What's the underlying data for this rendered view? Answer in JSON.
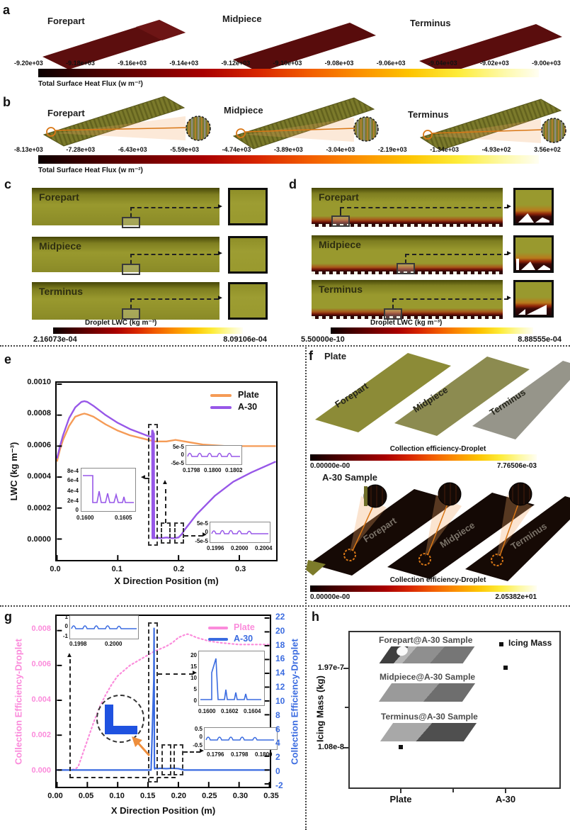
{
  "panel_a": {
    "tag": "a",
    "strips": [
      "Forepart",
      "Midpiece",
      "Terminus"
    ],
    "colorbar": {
      "ticks": [
        "-9.20e+03",
        "-9.18e+03",
        "-9.16e+03",
        "-9.14e+03",
        "-9.12e+03",
        "-9.10e+03",
        "-9.08e+03",
        "-9.06e+03",
        "-9.04e+03",
        "-9.02e+03",
        "-9.00e+03"
      ],
      "label": "Total Surface Heat Flux (w m⁻²)"
    }
  },
  "panel_b": {
    "tag": "b",
    "strips": [
      "Forepart",
      "Midpiece",
      "Terminus"
    ],
    "colorbar": {
      "ticks": [
        "-8.13e+03",
        "-7.28e+03",
        "-6.43e+03",
        "-5.59e+03",
        "-4.74e+03",
        "-3.89e+03",
        "-3.04e+03",
        "-2.19e+03",
        "-1.34e+03",
        "-4.93e+02",
        "3.56e+02"
      ],
      "label": "Total Surface Heat Flux (w m⁻²)"
    }
  },
  "panel_c": {
    "tag": "c",
    "strips": [
      "Forepart",
      "Midpiece",
      "Terminus"
    ],
    "colorbar": {
      "label": "Droplet LWC (kg m⁻³)",
      "min": "2.16073e-04",
      "max": "8.09106e-04"
    }
  },
  "panel_d": {
    "tag": "d",
    "strips": [
      "Forepart",
      "Midpiece",
      "Terminus"
    ],
    "colorbar": {
      "label": "Droplet LWC (kg m⁻³)",
      "min": "5.50000e-10",
      "max": "8.88555e-04"
    }
  },
  "panel_e": {
    "tag": "e"
  },
  "panel_f": {
    "tag": "f",
    "plate_title": "Plate",
    "a30_title": "A-30 Sample",
    "plate_strips": [
      "Forepart",
      "Midpiece",
      "Terminus"
    ],
    "a30_strips": [
      "Forepart",
      "Midpiece",
      "Terminus"
    ],
    "plate_colorbar": {
      "label": "Collection efficiency-Droplet",
      "min": "0.00000e-00",
      "max": "7.76506e-03"
    },
    "a30_colorbar": {
      "label": "Collection efficiency-Droplet",
      "min": "0.00000e-00",
      "max": "2.05382e+01"
    }
  },
  "panel_g": {
    "tag": "g"
  },
  "panel_h": {
    "tag": "h",
    "ylabel": "Icing Mass (kg)",
    "ytick_labels": [
      "1.97e-7",
      "1.08e-8"
    ],
    "xtick_labels": [
      "Plate",
      "A-30"
    ],
    "legend": "Icing Mass",
    "annotations": [
      "Forepart@A-30 Sample",
      "Midpiece@A-30 Sample",
      "Terminus@A-30 Sample"
    ]
  },
  "chart_data": [
    {
      "id": "chart-e",
      "type": "line",
      "xlabel": "X Direction Position (m)",
      "ylabel": "LWC (kg m⁻³)",
      "xlim": [
        0,
        0.36
      ],
      "ylim": [
        0,
        0.001
      ],
      "xticks": [
        0,
        0.1,
        0.2,
        0.3
      ],
      "xtick_labels": [
        "0.0",
        "0.1",
        "0.2",
        "0.3"
      ],
      "yticks": [
        0,
        0.0002,
        0.0004,
        0.0006,
        0.0008,
        0.001
      ],
      "ytick_labels": [
        "0.0000",
        "0.0002",
        "0.0004",
        "0.0006",
        "0.0008",
        "0.0010"
      ],
      "legend": [
        {
          "label": "Plate",
          "color": "#F59B56"
        },
        {
          "label": "A-30",
          "color": "#9757E8"
        }
      ],
      "series": [
        {
          "name": "Plate",
          "color": "#F59B56",
          "x": [
            0,
            0.005,
            0.01,
            0.02,
            0.03,
            0.04,
            0.045,
            0.05,
            0.06,
            0.08,
            0.1,
            0.12,
            0.14,
            0.16,
            0.18,
            0.195,
            0.21,
            0.24,
            0.28,
            0.32,
            0.36
          ],
          "y": [
            0.0005,
            0.00058,
            0.00064,
            0.00073,
            0.00079,
            0.000805,
            0.00081,
            0.000805,
            0.00079,
            0.00074,
            0.0007,
            0.00067,
            0.00065,
            0.00063,
            0.00063,
            0.00064,
            0.00063,
            0.00061,
            0.0006,
            0.0006,
            0.0006
          ]
        },
        {
          "name": "A-30",
          "color": "#9757E8",
          "x": [
            0,
            0.005,
            0.01,
            0.02,
            0.03,
            0.04,
            0.045,
            0.05,
            0.06,
            0.08,
            0.1,
            0.12,
            0.14,
            0.15,
            0.156,
            0.1565,
            0.157,
            0.1575,
            0.158,
            0.1585,
            0.159,
            0.1595,
            0.16,
            0.165,
            0.17,
            0.18,
            0.19,
            0.2,
            0.205,
            0.21,
            0.23,
            0.26,
            0.29,
            0.32,
            0.36
          ],
          "y": [
            0.00052,
            0.0006,
            0.00067,
            0.00078,
            0.00085,
            0.000885,
            0.00089,
            0.000885,
            0.00086,
            0.0008,
            0.00075,
            0.00071,
            0.00068,
            0.000665,
            0.00066,
            0.0007,
            5e-06,
            0.0007,
            5e-06,
            0.00069,
            5e-06,
            0.00068,
            5e-06,
            1e-05,
            5e-06,
            1e-05,
            5e-06,
            1e-05,
            3e-05,
            6e-05,
            0.00016,
            0.00028,
            0.00037,
            0.00043,
            0.0005
          ]
        }
      ],
      "insets": [
        {
          "yticks": [
            "8e-4",
            "6e-4",
            "4e-4",
            "2e-4",
            "0"
          ],
          "xticks": [
            "0.1600",
            "0.1605"
          ]
        },
        {
          "yticks": [
            "5e-5",
            "0",
            "-5e-5"
          ],
          "xticks": [
            "0.1798",
            "0.1800",
            "0.1802"
          ]
        },
        {
          "yticks": [
            "5e-5",
            "0",
            "-5e-5"
          ],
          "xticks": [
            "0.1996",
            "0.2000",
            "0.2004"
          ]
        }
      ]
    },
    {
      "id": "chart-g",
      "type": "line",
      "xlabel": "X Direction Position (m)",
      "ylabel_left": "Collection Efficiency-Droplet",
      "ylabel_right": "Collection Efficiency-Droplet",
      "xlim": [
        0,
        0.35
      ],
      "ylim_left": [
        -0.001,
        0.0088
      ],
      "ylim_right": [
        -2.4,
        22.3
      ],
      "xticks": [
        0,
        0.05,
        0.1,
        0.15,
        0.2,
        0.25,
        0.3,
        0.35
      ],
      "xtick_labels": [
        "0.00",
        "0.05",
        "0.10",
        "0.15",
        "0.20",
        "0.25",
        "0.30",
        "0.35"
      ],
      "yticks_left": [
        0,
        0.002,
        0.004,
        0.006,
        0.008
      ],
      "ytick_labels_left": [
        "0.000",
        "0.002",
        "0.004",
        "0.006",
        "0.008"
      ],
      "yticks_right": [
        -2,
        0,
        2,
        4,
        6,
        8,
        10,
        12,
        14,
        16,
        18,
        20,
        22
      ],
      "ytick_labels_right": [
        "-2",
        "0",
        "2",
        "4",
        "6",
        "8",
        "10",
        "12",
        "14",
        "16",
        "18",
        "20",
        "22"
      ],
      "legend": [
        {
          "label": "Plate",
          "color": "#FB8BDB"
        },
        {
          "label": "A-30",
          "color": "#3A6BE0"
        }
      ],
      "series": [
        {
          "name": "Plate",
          "axis": "left",
          "dashed": true,
          "color": "#FB8BDB",
          "x": [
            0,
            0.02,
            0.03,
            0.035,
            0.04,
            0.05,
            0.06,
            0.07,
            0.08,
            0.09,
            0.1,
            0.11,
            0.12,
            0.13,
            0.14,
            0.15,
            0.16,
            0.17,
            0.18,
            0.19,
            0.2,
            0.21,
            0.215,
            0.22,
            0.23,
            0.25,
            0.27,
            0.3,
            0.33,
            0.35
          ],
          "y": [
            0,
            0,
            5e-05,
            0.0002,
            0.0007,
            0.0017,
            0.0027,
            0.0036,
            0.0043,
            0.0049,
            0.0054,
            0.0057,
            0.006,
            0.0062,
            0.0064,
            0.0066,
            0.0068,
            0.00695,
            0.0071,
            0.0073,
            0.0076,
            0.00775,
            0.0078,
            0.00775,
            0.0076,
            0.0074,
            0.0073,
            0.0072,
            0.0072,
            0.0072
          ]
        },
        {
          "name": "A-30",
          "axis": "right",
          "color": "#3A6BE0",
          "x": [
            0,
            0.155,
            0.1595,
            0.16,
            0.1605,
            0.161,
            0.1615,
            0.165,
            0.17,
            0.18,
            0.19,
            0.2,
            0.205,
            0.21,
            0.35
          ],
          "y": [
            0,
            0,
            13,
            20.5,
            0.3,
            0.15,
            0.3,
            0.2,
            0.25,
            0.2,
            0.25,
            0.2,
            0.1,
            0,
            0
          ]
        }
      ],
      "insets": [
        {
          "yticks": [
            "1",
            "0",
            "-1"
          ],
          "xticks": [
            "0.1998",
            "0.2000"
          ]
        },
        {
          "yticks": [
            "20",
            "15",
            "10",
            "5",
            "0"
          ],
          "xticks": [
            "0.1600",
            "0.1602",
            "0.1604"
          ]
        },
        {
          "yticks": [
            "0.5",
            "0",
            "-0.5"
          ],
          "xticks": [
            "0.1796",
            "0.1798",
            "0.1800"
          ]
        }
      ]
    },
    {
      "id": "chart-h",
      "type": "scatter",
      "ylabel": "Icing Mass (kg)",
      "categories": [
        "Plate",
        "A-30"
      ],
      "values": [
        1.08e-08,
        1.97e-07
      ],
      "value_labels": [
        "1.08e-8",
        "1.97e-7"
      ],
      "ytick_labels": [
        "1.97e-7",
        "1.08e-8"
      ],
      "legend": [
        "Icing Mass"
      ],
      "annotations": [
        "Forepart@A-30 Sample",
        "Midpiece@A-30 Sample",
        "Terminus@A-30 Sample"
      ]
    }
  ]
}
